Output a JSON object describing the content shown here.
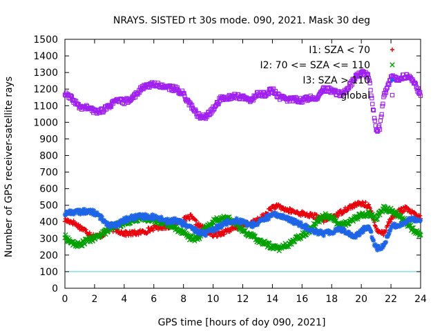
{
  "chart_data": {
    "type": "scatter",
    "title": "NRAYS. SISTED rt 30s mode. 090, 2021. Mask 30 deg",
    "xlabel": "GPS time [hours of doy 090, 2021]",
    "ylabel": "Number of GPS receiver-satellite rays",
    "xlim": [
      0,
      24
    ],
    "ylim": [
      0,
      1500
    ],
    "xticks": [
      0,
      2,
      4,
      6,
      8,
      10,
      12,
      14,
      16,
      18,
      20,
      22,
      24
    ],
    "yticks": [
      0,
      100,
      200,
      300,
      400,
      500,
      600,
      700,
      800,
      900,
      1000,
      1100,
      1200,
      1300,
      1400,
      1500
    ],
    "legend_position": "top-right",
    "reference_line": {
      "y": 100,
      "color": "#40d0e0"
    },
    "series": [
      {
        "name": "I1: SZA < 70",
        "marker": "+",
        "color": "#e8000b",
        "x": [
          0,
          0.5,
          1,
          1.5,
          2,
          2.5,
          3,
          3.5,
          4,
          4.5,
          5,
          5.5,
          6,
          6.5,
          7,
          7.5,
          8,
          8.5,
          9,
          9.5,
          10,
          10.5,
          11,
          11.5,
          12,
          12.5,
          13,
          13.5,
          14,
          14.5,
          15,
          15.5,
          16,
          16.5,
          17,
          17.5,
          18,
          18.5,
          19,
          19.5,
          20,
          20.5,
          21,
          21.5,
          22,
          22.5,
          23,
          23.5,
          24
        ],
        "y": [
          410,
          400,
          370,
          340,
          310,
          320,
          360,
          350,
          330,
          330,
          335,
          345,
          365,
          370,
          375,
          400,
          410,
          430,
          380,
          350,
          320,
          330,
          350,
          360,
          380,
          390,
          410,
          440,
          490,
          490,
          470,
          460,
          450,
          440,
          430,
          410,
          430,
          450,
          480,
          500,
          510,
          500,
          360,
          330,
          420,
          460,
          480,
          450,
          420
        ]
      },
      {
        "name": "I2: 70 <= SZA <= 110",
        "marker": "x",
        "color": "#00a000",
        "x": [
          0,
          0.5,
          1,
          1.5,
          2,
          2.5,
          3,
          3.5,
          4,
          4.5,
          5,
          5.5,
          6,
          6.5,
          7,
          7.5,
          8,
          8.5,
          9,
          9.5,
          10,
          10.5,
          11,
          11.5,
          12,
          12.5,
          13,
          13.5,
          14,
          14.5,
          15,
          15.5,
          16,
          16.5,
          17,
          17.5,
          18,
          18.5,
          19,
          19.5,
          20,
          20.5,
          21,
          21.5,
          22,
          22.5,
          23,
          23.5,
          24
        ],
        "y": [
          310,
          270,
          260,
          290,
          300,
          330,
          350,
          380,
          390,
          410,
          420,
          420,
          410,
          400,
          380,
          360,
          340,
          300,
          300,
          360,
          400,
          420,
          420,
          390,
          350,
          320,
          290,
          270,
          250,
          240,
          260,
          290,
          320,
          350,
          400,
          440,
          430,
          380,
          390,
          420,
          440,
          450,
          420,
          480,
          470,
          440,
          400,
          350,
          320
        ]
      },
      {
        "name": "I3: SZA > 110",
        "marker": "*",
        "color": "#1e64e6",
        "x": [
          0,
          0.5,
          1,
          1.5,
          2,
          2.5,
          3,
          3.5,
          4,
          4.5,
          5,
          5.5,
          6,
          6.5,
          7,
          7.5,
          8,
          8.5,
          9,
          9.5,
          10,
          10.5,
          11,
          11.5,
          12,
          12.5,
          13,
          13.5,
          14,
          14.5,
          15,
          15.5,
          16,
          16.5,
          17,
          17.5,
          18,
          18.5,
          19,
          19.5,
          20,
          20.5,
          21,
          21.5,
          22,
          22.5,
          23,
          23.5,
          24
        ],
        "y": [
          450,
          460,
          460,
          465,
          455,
          420,
          380,
          380,
          410,
          425,
          430,
          435,
          430,
          420,
          400,
          410,
          390,
          360,
          340,
          330,
          350,
          380,
          400,
          410,
          400,
          380,
          390,
          420,
          440,
          440,
          420,
          400,
          380,
          360,
          340,
          330,
          340,
          360,
          340,
          310,
          340,
          380,
          240,
          250,
          370,
          380,
          400,
          420,
          410
        ]
      },
      {
        "name": "global",
        "marker": "square",
        "color": "#a020f0",
        "x": [
          0,
          0.5,
          1,
          1.5,
          2,
          2.5,
          3,
          3.5,
          4,
          4.5,
          5,
          5.5,
          6,
          6.5,
          7,
          7.5,
          8,
          8.5,
          9,
          9.5,
          10,
          10.5,
          11,
          11.5,
          12,
          12.5,
          13,
          13.5,
          14,
          14.5,
          15,
          15.5,
          16,
          16.5,
          17,
          17.5,
          18,
          18.5,
          19,
          19.5,
          20,
          20.5,
          21,
          21.25,
          21.5,
          22,
          22.5,
          23,
          23.5,
          24
        ],
        "y": [
          1170,
          1140,
          1090,
          1090,
          1065,
          1070,
          1100,
          1130,
          1125,
          1140,
          1190,
          1220,
          1230,
          1220,
          1210,
          1200,
          1170,
          1100,
          1040,
          1030,
          1080,
          1140,
          1150,
          1160,
          1150,
          1130,
          1170,
          1170,
          1195,
          1150,
          1140,
          1140,
          1130,
          1150,
          1150,
          1200,
          1190,
          1170,
          1190,
          1260,
          1300,
          1280,
          950,
          970,
          1150,
          1270,
          1260,
          1280,
          1250,
          1160
        ]
      }
    ]
  }
}
